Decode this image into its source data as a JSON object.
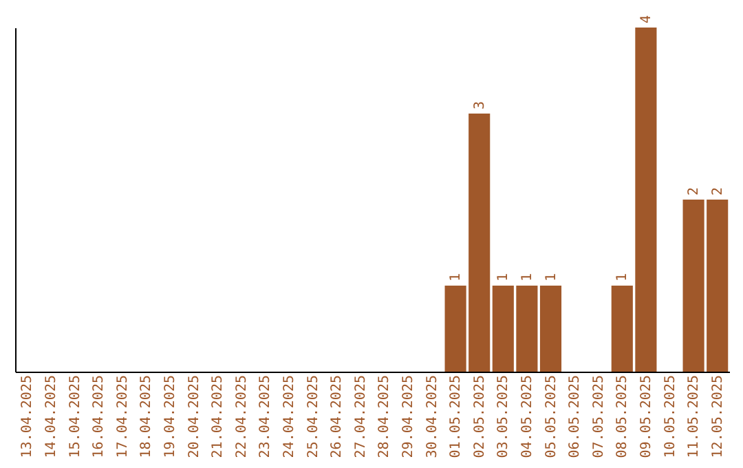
{
  "chart_data": {
    "type": "bar",
    "categories": [
      "13.04.2025",
      "14.04.2025",
      "15.04.2025",
      "16.04.2025",
      "17.04.2025",
      "18.04.2025",
      "19.04.2025",
      "20.04.2025",
      "21.04.2025",
      "22.04.2025",
      "23.04.2025",
      "24.04.2025",
      "25.04.2025",
      "26.04.2025",
      "27.04.2025",
      "28.04.2025",
      "29.04.2025",
      "30.04.2025",
      "01.05.2025",
      "02.05.2025",
      "03.05.2025",
      "04.05.2025",
      "05.05.2025",
      "06.05.2025",
      "07.05.2025",
      "08.05.2025",
      "09.05.2025",
      "10.05.2025",
      "11.05.2025",
      "12.05.2025"
    ],
    "values": [
      null,
      null,
      null,
      null,
      null,
      null,
      null,
      null,
      null,
      null,
      null,
      null,
      null,
      null,
      null,
      null,
      null,
      null,
      1,
      3,
      1,
      1,
      1,
      null,
      null,
      1,
      4,
      null,
      2,
      2
    ],
    "value_labels": [
      null,
      null,
      null,
      null,
      null,
      null,
      null,
      null,
      null,
      null,
      null,
      null,
      null,
      null,
      null,
      null,
      null,
      null,
      "1",
      "3",
      "1",
      "1",
      "1",
      null,
      null,
      "1",
      "4",
      null,
      "2",
      "2"
    ],
    "color": "#a0582a",
    "tick_labels": "x",
    "grid": false
  }
}
